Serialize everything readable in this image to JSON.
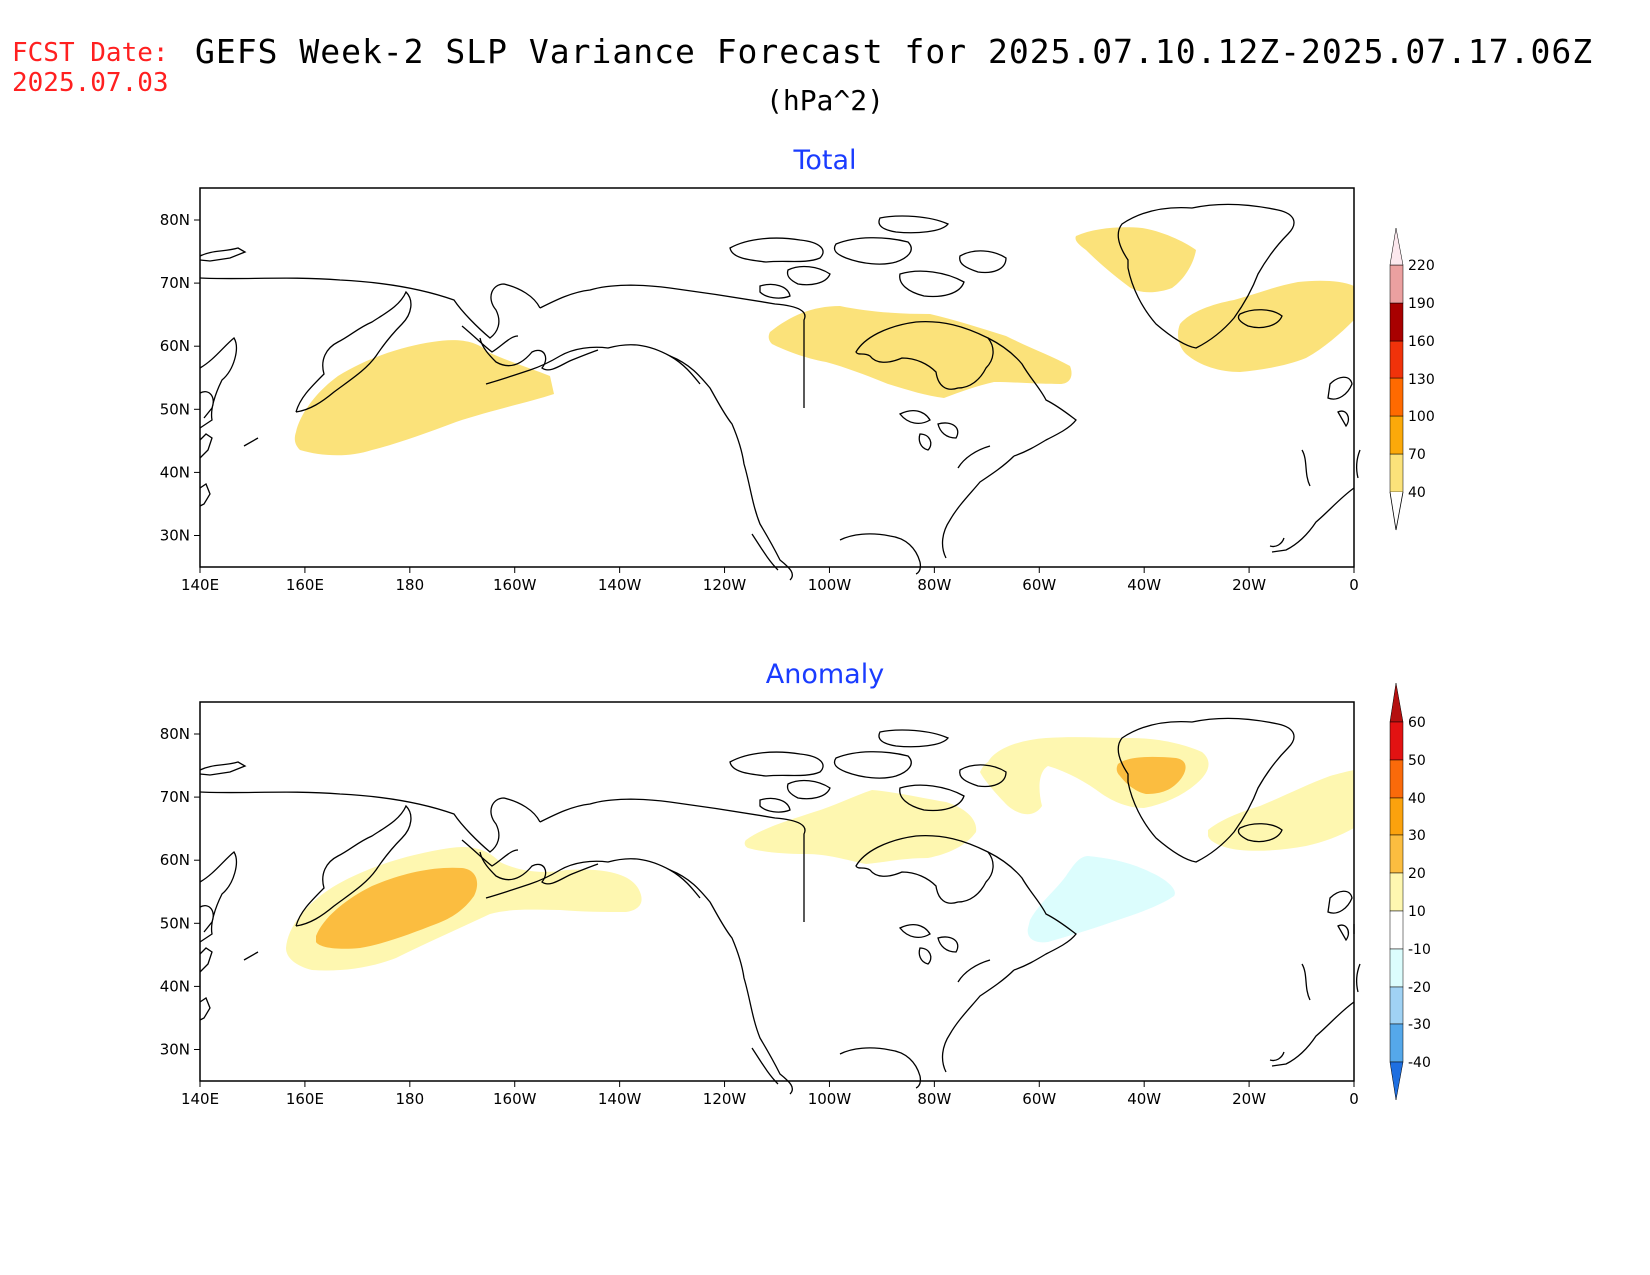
{
  "header": {
    "fcst_label": "FCST Date:",
    "fcst_date": "2025.07.03",
    "title": "GEFS Week-2 SLP Variance Forecast for 2025.07.10.12Z-2025.07.17.06Z",
    "units": "(hPa^2)"
  },
  "axes": {
    "x_ticks": [
      "140E",
      "160E",
      "180",
      "160W",
      "140W",
      "120W",
      "100W",
      "80W",
      "60W",
      "40W",
      "20W",
      "0"
    ],
    "y_ticks": [
      "80N",
      "70N",
      "60N",
      "50N",
      "40N",
      "30N"
    ]
  },
  "panels": [
    {
      "title": "Total",
      "colorbar": {
        "labels": [
          "40",
          "70",
          "100",
          "130",
          "160",
          "190",
          "220"
        ],
        "colors": [
          "#fbe27a",
          "#fba90a",
          "#ff6a00",
          "#f0320a",
          "#a80000",
          "#eba0a0",
          "#fce8ee"
        ]
      },
      "regions": [
        {
          "name": "north-pacific",
          "color": "#fbe27a"
        },
        {
          "name": "hudson-bay",
          "color": "#fbe27a"
        },
        {
          "name": "greenland",
          "color": "#fbe27a"
        },
        {
          "name": "iceland",
          "color": "#fbe27a"
        }
      ]
    },
    {
      "title": "Anomaly",
      "colorbar": {
        "labels": [
          "60",
          "50",
          "40",
          "30",
          "20",
          "10",
          "-10",
          "-20",
          "-30",
          "-40"
        ],
        "colors_top_to_bottom": [
          "#e21212",
          "#fa6a0a",
          "#fba20d",
          "#fbbd40",
          "#fde880",
          "#fef7b0",
          "#ffffff",
          "#dcfdfd",
          "#a0d2f4",
          "#55a8ea",
          "#1e6fe0"
        ]
      },
      "regions": [
        {
          "name": "north-pacific-outer",
          "color": "#fef7b0"
        },
        {
          "name": "north-pacific-core",
          "color": "#fbbd40"
        },
        {
          "name": "canada",
          "color": "#fef7b0"
        },
        {
          "name": "greenland-outer",
          "color": "#fef7b0"
        },
        {
          "name": "greenland-core",
          "color": "#fbbd40"
        },
        {
          "name": "iceland",
          "color": "#fef7b0"
        },
        {
          "name": "labrador-sea",
          "color": "#dcfdfd"
        }
      ]
    }
  ]
}
